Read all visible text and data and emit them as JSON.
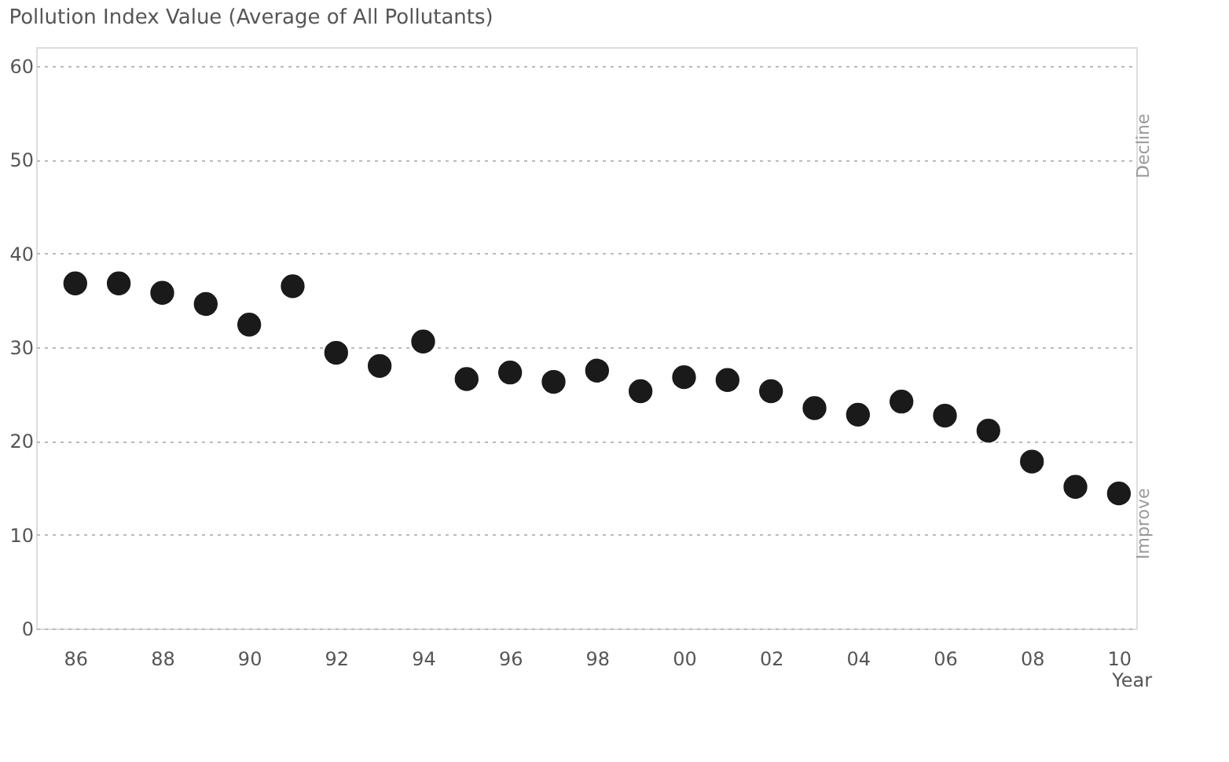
{
  "chart_data": {
    "type": "scatter",
    "title": "Pollution Index Value (Average of All Pollutants)",
    "xlabel": "Year",
    "x": [
      1986,
      1987,
      1988,
      1989,
      1990,
      1991,
      1992,
      1993,
      1994,
      1995,
      1996,
      1997,
      1998,
      1999,
      2000,
      2001,
      2002,
      2003,
      2004,
      2005,
      2006,
      2007,
      2008,
      2009,
      2010
    ],
    "series": [
      {
        "color": "#1a1a1a",
        "values": [
          36.8,
          36.8,
          35.8,
          34.6,
          32.4,
          36.5,
          29.4,
          28.0,
          30.6,
          26.6,
          27.3,
          26.3,
          27.5,
          25.3,
          26.8,
          26.5,
          25.3,
          23.5,
          22.8,
          24.2,
          22.7,
          21.1,
          17.8,
          15.1,
          14.4
        ]
      }
    ],
    "xlim": [
      1985.1,
      2010.4
    ],
    "xticks": [
      {
        "value": 1986,
        "label": "86"
      },
      {
        "value": 1988,
        "label": "88"
      },
      {
        "value": 1990,
        "label": "90"
      },
      {
        "value": 1992,
        "label": "92"
      },
      {
        "value": 1994,
        "label": "94"
      },
      {
        "value": 1996,
        "label": "96"
      },
      {
        "value": 1998,
        "label": "98"
      },
      {
        "value": 2000,
        "label": "00"
      },
      {
        "value": 2002,
        "label": "02"
      },
      {
        "value": 2004,
        "label": "04"
      },
      {
        "value": 2006,
        "label": "06"
      },
      {
        "value": 2008,
        "label": "08"
      },
      {
        "value": 2010,
        "label": "10"
      }
    ],
    "ylim": [
      0,
      62
    ],
    "yticks": [
      0,
      10,
      20,
      30,
      40,
      50,
      60
    ],
    "grid": "y",
    "marker": "circle",
    "legend": false,
    "annotations": [
      "Decline",
      "Improve"
    ]
  }
}
